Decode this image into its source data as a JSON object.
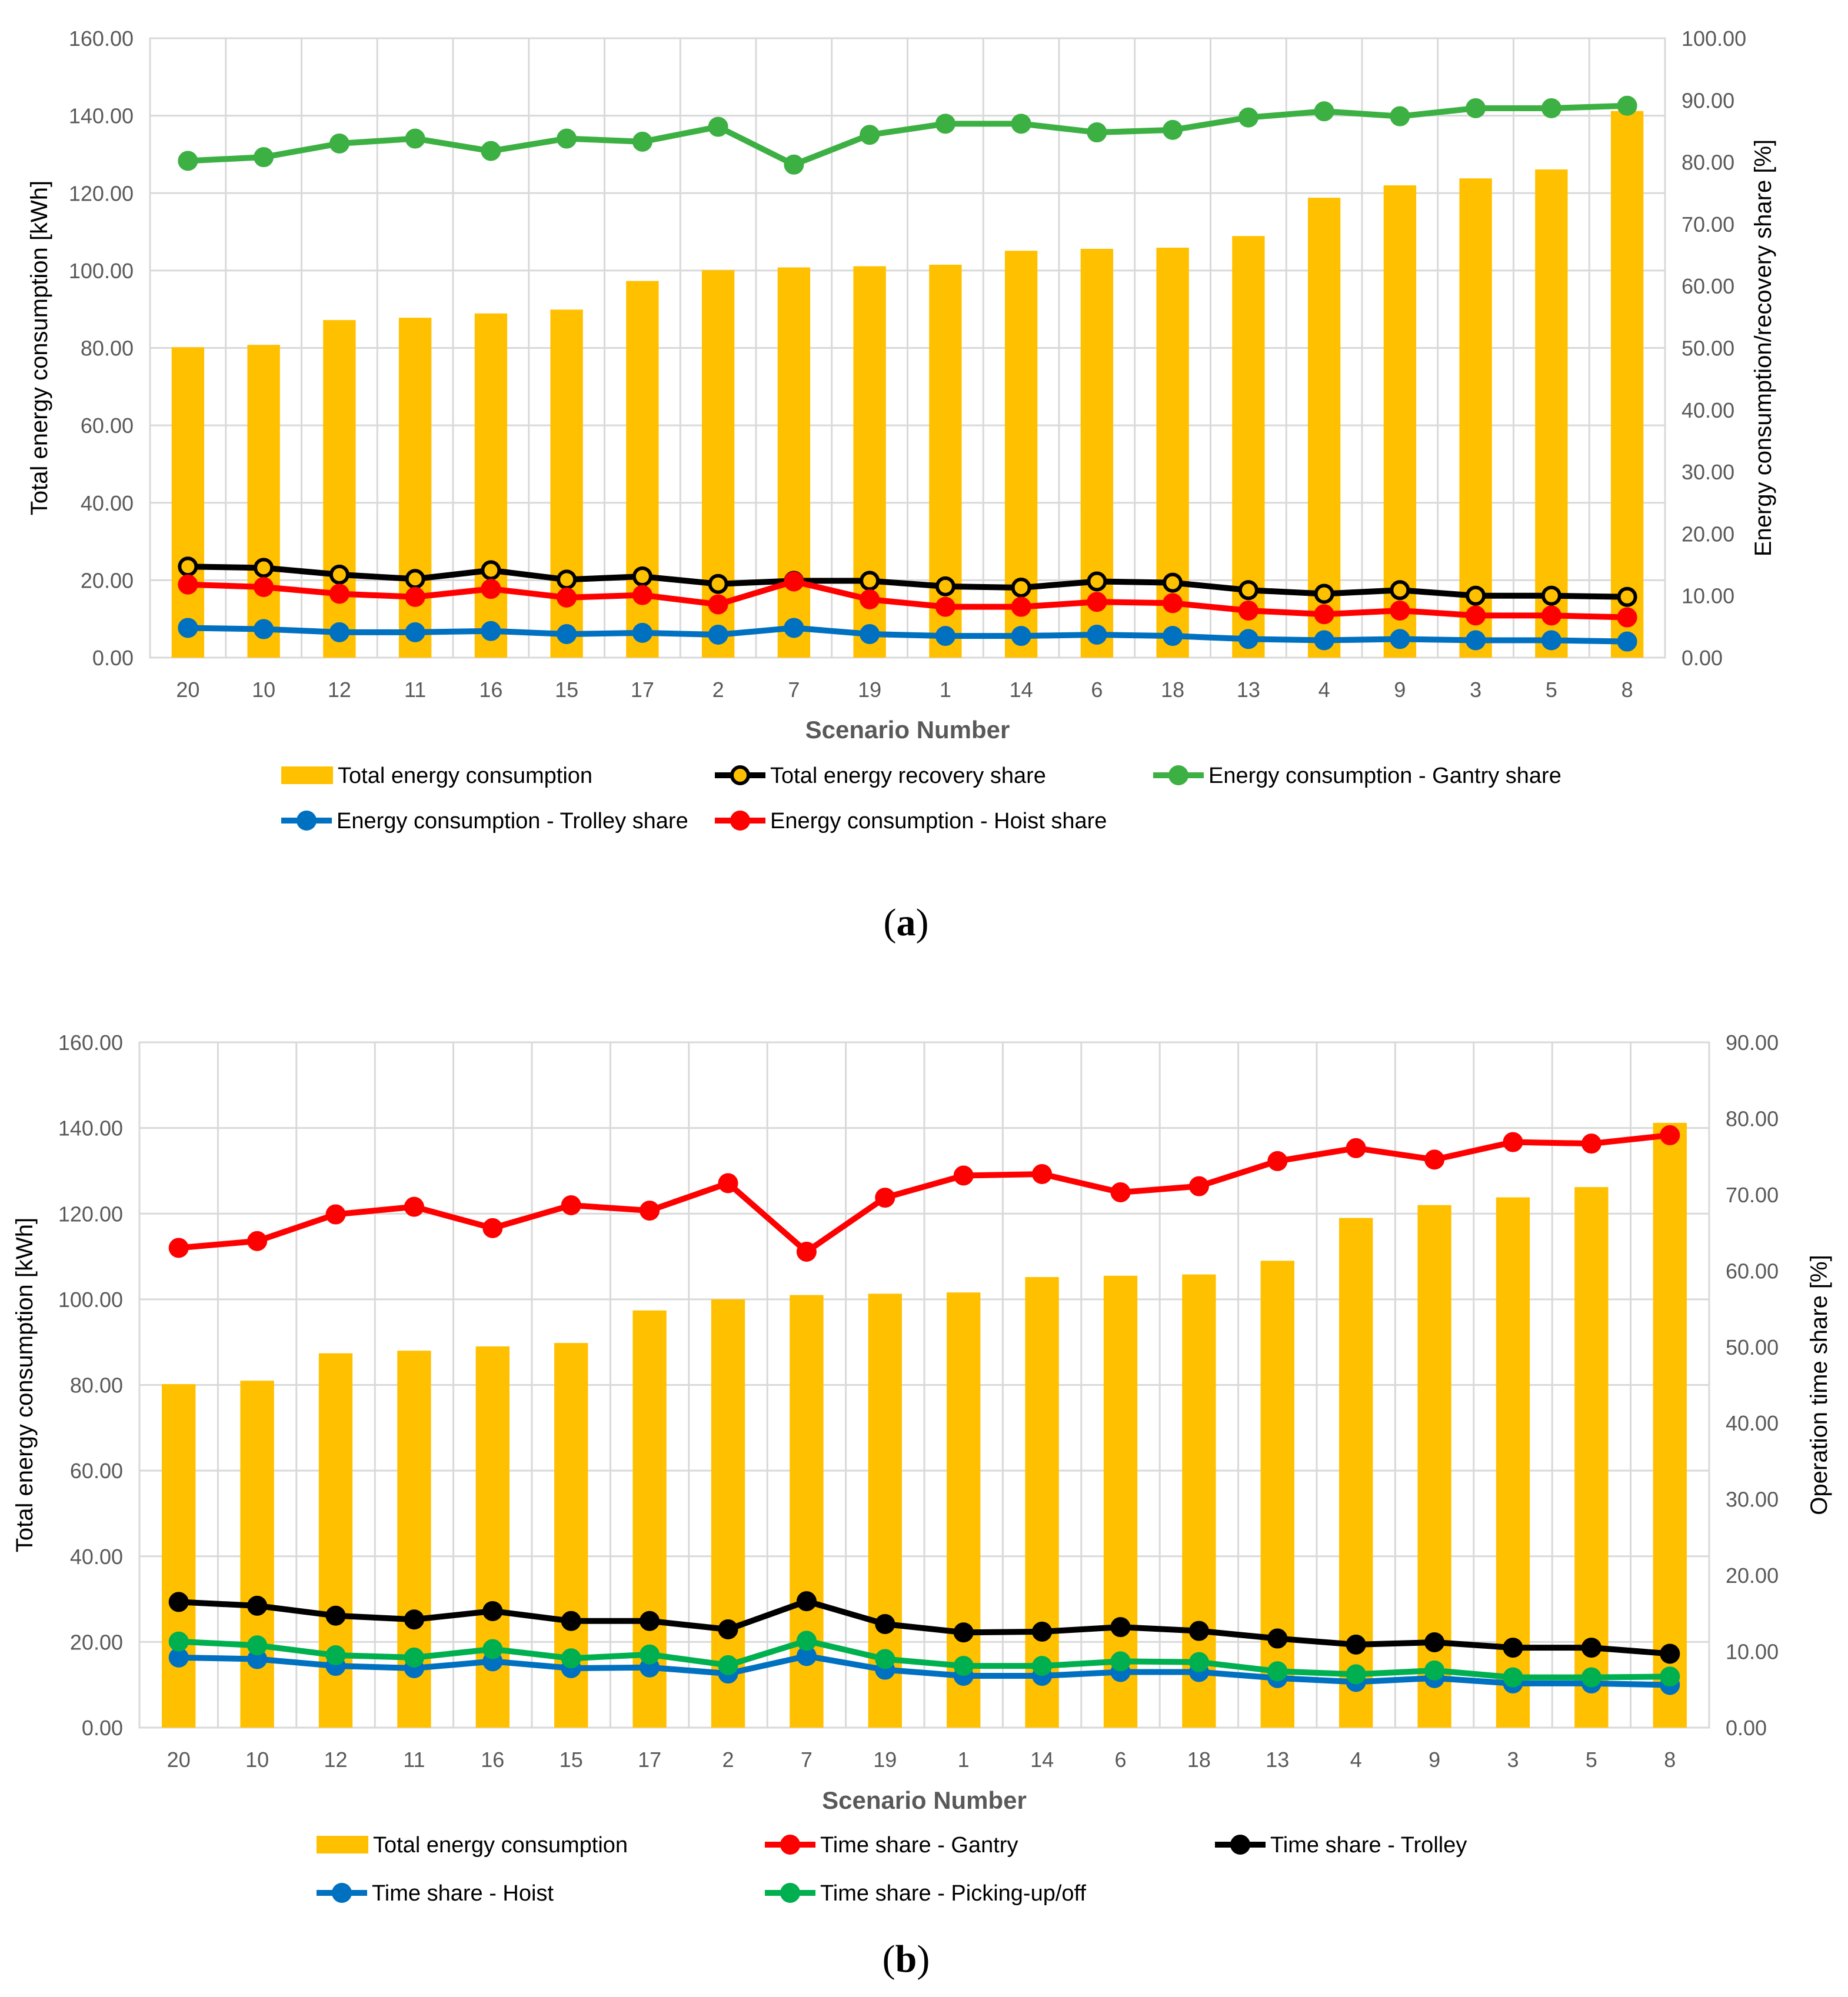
{
  "chart_data": [
    {
      "type": "bar+line",
      "caption_letter": "a",
      "categories": [
        "20",
        "10",
        "12",
        "11",
        "16",
        "15",
        "17",
        "2",
        "7",
        "19",
        "1",
        "14",
        "6",
        "18",
        "13",
        "4",
        "9",
        "3",
        "5",
        "8"
      ],
      "xlabel": "Scenario Number",
      "ylabel": "Total energy consumption [kWh]",
      "y2label": "Energy consumption/recovery share [%]",
      "ylim": [
        0,
        160
      ],
      "y2lim": [
        0,
        100
      ],
      "yticks": [
        "0.00",
        "20.00",
        "40.00",
        "60.00",
        "80.00",
        "100.00",
        "120.00",
        "140.00",
        "160.00"
      ],
      "y2ticks": [
        "0.00",
        "10.00",
        "20.00",
        "30.00",
        "40.00",
        "50.00",
        "60.00",
        "70.00",
        "80.00",
        "90.00",
        "100.00"
      ],
      "bars": {
        "name": "Total energy consumption",
        "color": "#FFC000",
        "values": [
          80.2,
          80.8,
          87.2,
          87.8,
          88.9,
          89.9,
          97.3,
          100.1,
          100.8,
          101.1,
          101.5,
          105.1,
          105.6,
          105.9,
          108.9,
          118.8,
          122.0,
          123.8,
          126.1,
          141.2
        ]
      },
      "series": [
        {
          "name": "Total energy recovery share",
          "color": "#000000",
          "marker_fill": "#FFC000",
          "values": [
            14.7,
            14.5,
            13.4,
            12.7,
            14.1,
            12.6,
            13.1,
            11.9,
            12.4,
            12.4,
            11.5,
            11.3,
            12.3,
            12.1,
            10.9,
            10.3,
            10.9,
            10.0,
            10.0,
            9.8
          ]
        },
        {
          "name": "Energy consumption - Gantry share",
          "color": "#3CB043",
          "marker_fill": "#3CB043",
          "values": [
            80.2,
            80.8,
            83.0,
            83.8,
            81.8,
            83.8,
            83.3,
            85.7,
            79.6,
            84.4,
            86.2,
            86.2,
            84.8,
            85.2,
            87.2,
            88.2,
            87.4,
            88.7,
            88.7,
            89.1
          ]
        },
        {
          "name": "Energy consumption - Trolley share",
          "color": "#0070C0",
          "marker_fill": "#0070C0",
          "values": [
            4.8,
            4.6,
            4.1,
            4.1,
            4.3,
            3.8,
            4.0,
            3.7,
            4.8,
            3.8,
            3.5,
            3.5,
            3.7,
            3.5,
            3.0,
            2.8,
            3.0,
            2.8,
            2.8,
            2.6
          ]
        },
        {
          "name": "Energy consumption - Hoist share",
          "color": "#FF0000",
          "marker_fill": "#FF0000",
          "values": [
            11.8,
            11.4,
            10.3,
            9.8,
            11.1,
            9.7,
            10.1,
            8.6,
            12.3,
            9.4,
            8.2,
            8.2,
            9.0,
            8.8,
            7.6,
            7.0,
            7.6,
            6.8,
            6.8,
            6.5
          ]
        }
      ]
    },
    {
      "type": "bar+line",
      "caption_letter": "b",
      "categories": [
        "20",
        "10",
        "12",
        "11",
        "16",
        "15",
        "17",
        "2",
        "7",
        "19",
        "1",
        "14",
        "6",
        "18",
        "13",
        "4",
        "9",
        "3",
        "5",
        "8"
      ],
      "xlabel": "Scenario Number",
      "ylabel": "Total energy consumption [kWh]",
      "y2label": "Operation time share [%]",
      "ylim": [
        0,
        160
      ],
      "y2lim": [
        0,
        90
      ],
      "yticks": [
        "0.00",
        "20.00",
        "40.00",
        "60.00",
        "80.00",
        "100.00",
        "120.00",
        "140.00",
        "160.00"
      ],
      "y2ticks": [
        "0.00",
        "10.00",
        "20.00",
        "30.00",
        "40.00",
        "50.00",
        "60.00",
        "70.00",
        "80.00",
        "90.00"
      ],
      "bars": {
        "name": "Total energy consumption",
        "color": "#FFC000",
        "values": [
          80.2,
          81.0,
          87.4,
          88.0,
          89.0,
          89.8,
          97.4,
          100.0,
          101.0,
          101.3,
          101.6,
          105.2,
          105.5,
          105.8,
          109.0,
          119.0,
          122.0,
          123.8,
          126.2,
          141.2
        ]
      },
      "series": [
        {
          "name": "Time share - Gantry",
          "color": "#FF0000",
          "marker_fill": "#FF0000",
          "values": [
            63.0,
            63.9,
            67.4,
            68.4,
            65.6,
            68.6,
            67.9,
            71.5,
            62.5,
            69.6,
            72.5,
            72.7,
            70.3,
            71.1,
            74.4,
            76.1,
            74.6,
            76.9,
            76.7,
            77.8
          ]
        },
        {
          "name": "Time share - Trolley",
          "color": "#000000",
          "marker_fill": "#000000",
          "values": [
            16.5,
            16.0,
            14.7,
            14.2,
            15.3,
            14.0,
            14.0,
            12.9,
            16.6,
            13.6,
            12.5,
            12.6,
            13.2,
            12.7,
            11.7,
            10.9,
            11.2,
            10.5,
            10.5,
            9.7
          ]
        },
        {
          "name": "Time share - Hoist",
          "color": "#0070C0",
          "marker_fill": "#0070C0",
          "values": [
            9.2,
            9.0,
            8.1,
            7.8,
            8.7,
            7.8,
            7.9,
            7.1,
            9.4,
            7.6,
            6.8,
            6.8,
            7.3,
            7.3,
            6.5,
            6.0,
            6.5,
            5.8,
            5.8,
            5.6
          ]
        },
        {
          "name": "Time share - Picking-up/off",
          "color": "#00B050",
          "marker_fill": "#00B050",
          "values": [
            11.3,
            10.8,
            9.5,
            9.2,
            10.3,
            9.1,
            9.6,
            8.2,
            11.4,
            9.0,
            8.1,
            8.1,
            8.7,
            8.6,
            7.4,
            7.0,
            7.5,
            6.6,
            6.6,
            6.7
          ]
        }
      ]
    }
  ]
}
